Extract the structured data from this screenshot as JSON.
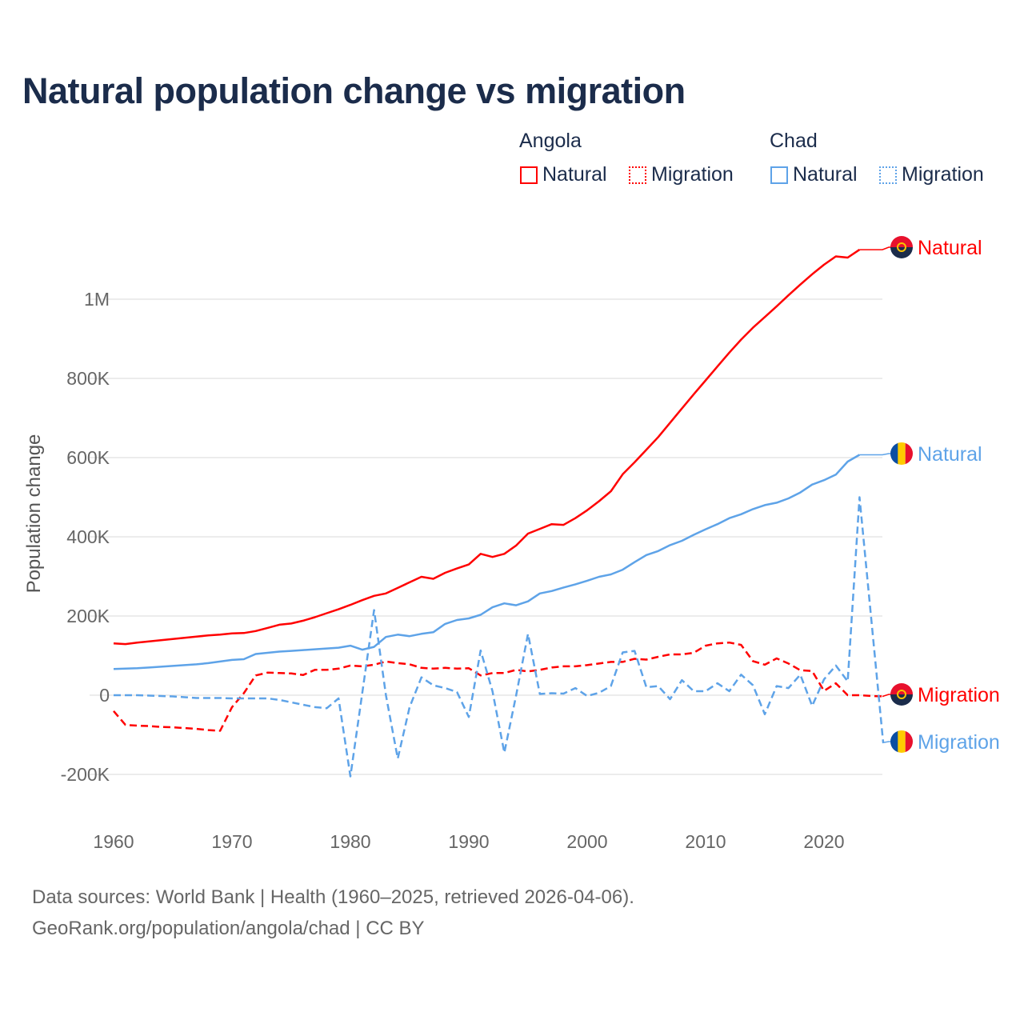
{
  "title": "Natural population change vs migration",
  "legend": {
    "groups": [
      {
        "name": "Angola",
        "color": "#ff0000",
        "items": [
          "Natural",
          "Migration"
        ]
      },
      {
        "name": "Chad",
        "color": "#5ea3e8",
        "items": [
          "Natural",
          "Migration"
        ]
      }
    ]
  },
  "footer": {
    "line1": "Data sources: World Bank | Health (1960–2025, retrieved 2026-04-06).",
    "line2": "GeoRank.org/population/angola/chad | CC BY"
  },
  "chart_data": {
    "type": "line",
    "title": "Natural population change vs migration",
    "xlabel": "",
    "ylabel": "Population change",
    "xlim": [
      1960,
      2025
    ],
    "ylim": [
      -300,
      1150
    ],
    "y_unit": "thousands",
    "grid": true,
    "legend_position": "top-right",
    "x_ticks": [
      1960,
      1970,
      1980,
      1990,
      2000,
      2010,
      2020
    ],
    "x_tick_labels": [
      "1960",
      "1970",
      "1980",
      "1990",
      "2000",
      "2010",
      "2020"
    ],
    "y_ticks": [
      -200,
      0,
      200,
      400,
      600,
      800,
      1000
    ],
    "y_tick_labels": [
      "-200K",
      "0",
      "200K",
      "400K",
      "600K",
      "800K",
      "1M"
    ],
    "series": [
      {
        "name": "Angola Natural",
        "end_label": "Natural",
        "color": "#ff0000",
        "dash": false,
        "start_year": 1960,
        "values": [
          131,
          129,
          133,
          136,
          139,
          142,
          145,
          148,
          151,
          153,
          156,
          157,
          162,
          170,
          178,
          181,
          188,
          197,
          207,
          217,
          228,
          240,
          251,
          257,
          271,
          285,
          299,
          294,
          309,
          320,
          330,
          357,
          349,
          357,
          378,
          408,
          420,
          432,
          430,
          447,
          467,
          490,
          515,
          558,
          588,
          620,
          652,
          688,
          724,
          760,
          795,
          830,
          865,
          898,
          928,
          955,
          982,
          1010,
          1037,
          1063,
          1087,
          1108,
          1105,
          1125
        ]
      },
      {
        "name": "Chad Natural",
        "end_label": "Natural",
        "color": "#5ea3e8",
        "dash": false,
        "start_year": 1960,
        "values": [
          66,
          67,
          68,
          70,
          72,
          74,
          76,
          78,
          81,
          85,
          89,
          91,
          104,
          107,
          110,
          112,
          114,
          116,
          118,
          120,
          125,
          115,
          122,
          147,
          153,
          149,
          155,
          159,
          180,
          190,
          194,
          203,
          222,
          232,
          227,
          237,
          257,
          263,
          272,
          280,
          289,
          299,
          305,
          317,
          336,
          354,
          364,
          379,
          390,
          405,
          419,
          432,
          447,
          457,
          470,
          480,
          486,
          497,
          512,
          532,
          543,
          557,
          590,
          607
        ]
      },
      {
        "name": "Angola Migration",
        "end_label": "Migration",
        "color": "#ff0000",
        "dash": true,
        "start_year": 1960,
        "values": [
          -40,
          -75,
          -77,
          -78,
          -80,
          -81,
          -83,
          -85,
          -88,
          -90,
          -30,
          5,
          50,
          57,
          56,
          55,
          51,
          64,
          64,
          67,
          75,
          73,
          77,
          85,
          81,
          78,
          69,
          67,
          69,
          67,
          68,
          50,
          56,
          56,
          64,
          60,
          64,
          70,
          73,
          73,
          76,
          80,
          84,
          84,
          92,
          90,
          97,
          103,
          103,
          107,
          125,
          131,
          133,
          127,
          86,
          77,
          93,
          80,
          63,
          61,
          11,
          30,
          0,
          0,
          -2,
          -3
        ]
      },
      {
        "name": "Chad Migration",
        "end_label": "Migration",
        "color": "#5ea3e8",
        "dash": true,
        "start_year": 1960,
        "values": [
          0,
          0,
          0,
          -1,
          -2,
          -3,
          -5,
          -7,
          -7,
          -7,
          -8,
          -8,
          -8,
          -8,
          -12,
          -18,
          -24,
          -30,
          -33,
          -8,
          -205,
          5,
          215,
          0,
          -160,
          -30,
          45,
          25,
          18,
          8,
          -55,
          113,
          10,
          -145,
          0,
          155,
          3,
          5,
          4,
          18,
          -2,
          6,
          23,
          108,
          112,
          20,
          23,
          -10,
          38,
          10,
          10,
          30,
          10,
          52,
          25,
          -48,
          23,
          18,
          52,
          -27,
          40,
          75,
          35,
          500,
          190,
          -120
        ]
      }
    ]
  }
}
